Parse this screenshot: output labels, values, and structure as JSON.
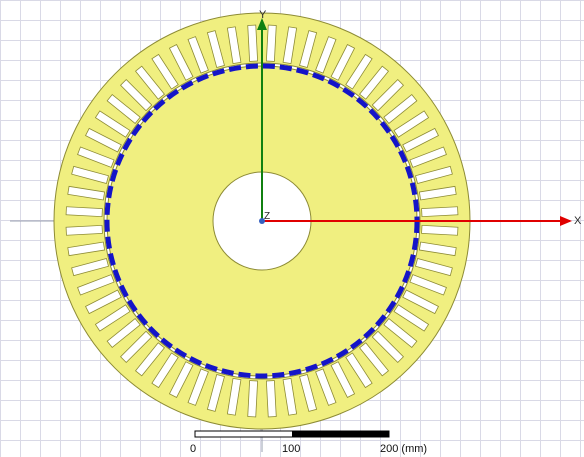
{
  "viewport": {
    "colors": {
      "background": "#ffffff",
      "grid": "#d9d9e6",
      "stator": "#f0ef80",
      "stator_outline": "#8d8b35",
      "coil_dash": "#1414c8",
      "x_axis": "#e00000",
      "y_axis": "#108010",
      "origin": "#3560c0"
    },
    "axes": {
      "x_label": "X",
      "y_label": "Y",
      "z_label": "Z"
    },
    "model": {
      "slot_count": 60
    },
    "scale_bar": {
      "labels": [
        "0",
        "100",
        "200 (mm)"
      ],
      "unit": "mm"
    }
  }
}
